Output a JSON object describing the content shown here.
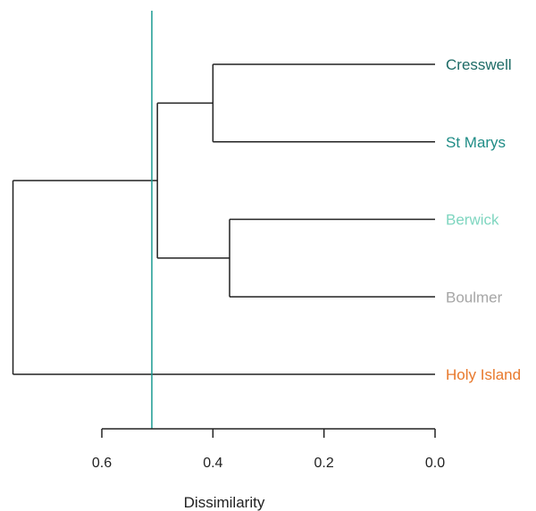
{
  "chart_data": {
    "type": "dendrogram",
    "title": "",
    "xlabel": "Dissimilarity",
    "x_axis": {
      "reversed": true,
      "xlim": [
        0.0,
        0.6
      ],
      "ticks": [
        0.6,
        0.4,
        0.2,
        0.0
      ],
      "tick_labels": [
        "0.6",
        "0.4",
        "0.2",
        "0.0"
      ]
    },
    "leaves": [
      {
        "label": "Cresswell",
        "color": "#1d6b66"
      },
      {
        "label": "St Marys",
        "color": "#1f8c86"
      },
      {
        "label": "Berwick",
        "color": "#7fd6c0"
      },
      {
        "label": "Boulmer",
        "color": "#a6a6a6"
      },
      {
        "label": "Holy Island",
        "color": "#e8792c"
      }
    ],
    "merges": [
      {
        "id": "m1",
        "children": [
          "Cresswell",
          "St Marys"
        ],
        "height": 0.4
      },
      {
        "id": "m2",
        "children": [
          "Berwick",
          "Boulmer"
        ],
        "height": 0.37
      },
      {
        "id": "m3",
        "children": [
          "m1",
          "m2"
        ],
        "height": 0.5
      },
      {
        "id": "m4",
        "children": [
          "m3",
          "Holy Island"
        ],
        "height": 0.76
      }
    ],
    "cut_line": {
      "value": 0.51,
      "color": "#1a9a92"
    },
    "branch_color": "#222222",
    "grid": false
  }
}
